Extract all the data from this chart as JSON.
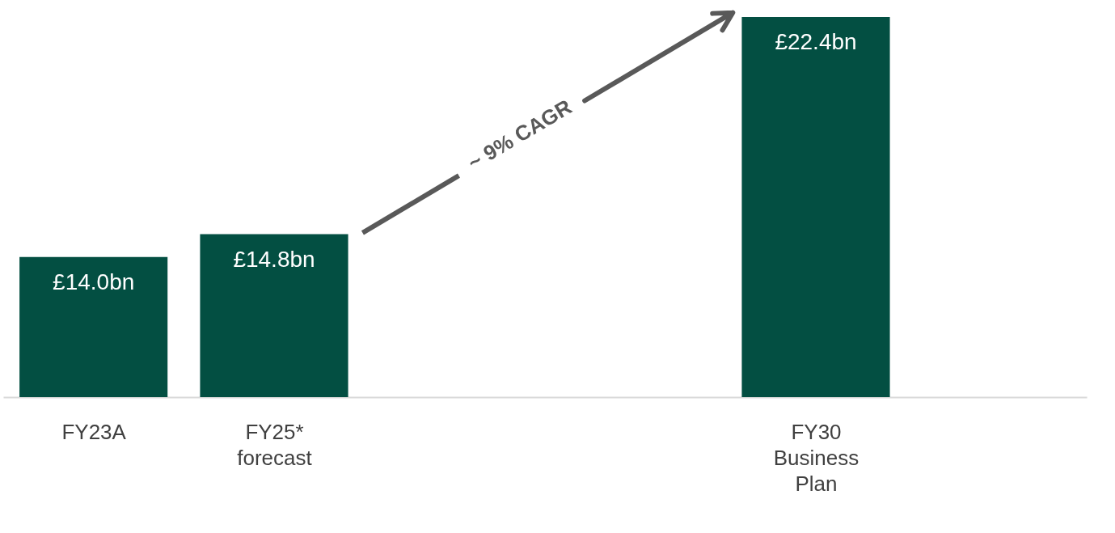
{
  "chart_data": {
    "type": "bar",
    "categories": [
      "FY23A",
      "FY25* forecast",
      null,
      null,
      "FY30 Business Plan",
      null
    ],
    "values": [
      14.0,
      14.8,
      null,
      null,
      22.4,
      null
    ],
    "value_labels": [
      "£14.0bn",
      "£14.8bn",
      null,
      null,
      "£22.4bn",
      null
    ],
    "color": "#034f42",
    "ylim": [
      9.1,
      22.4
    ],
    "annotations": [
      "~ 9% CAGR"
    ],
    "grid": false
  }
}
